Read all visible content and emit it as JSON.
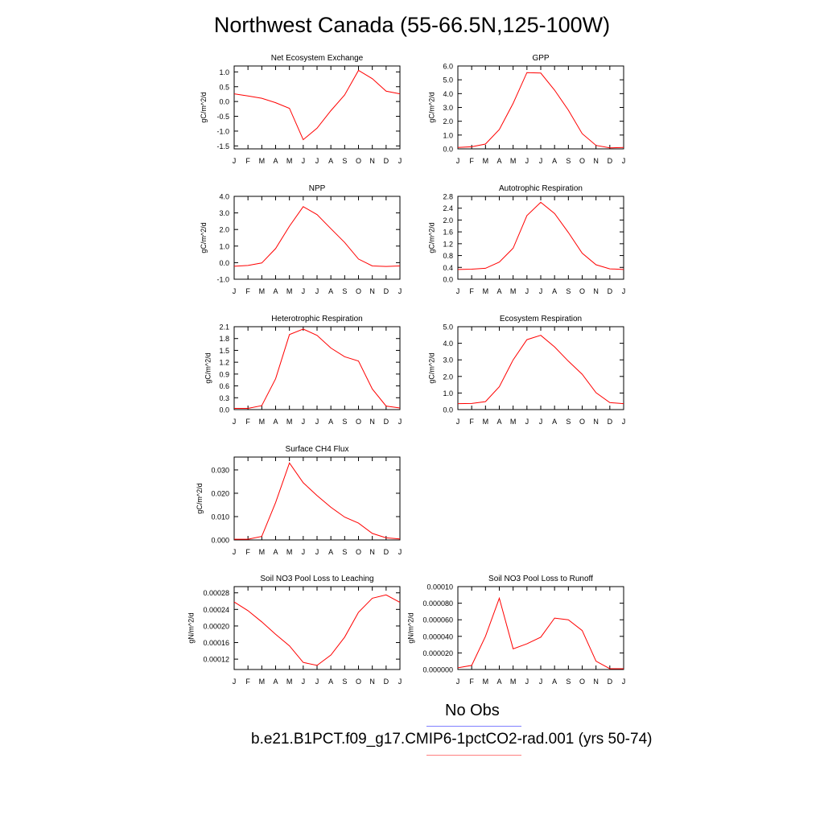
{
  "title": "Northwest Canada (55-66.5N,125-100W)",
  "legend": {
    "obs_label": "No Obs",
    "obs_color": "#8080ff",
    "case_label": "b.e21.B1PCT.f09_g17.CMIP6-1pctCO2-rad.001 (yrs 50-74)",
    "case_color": "#ff8080"
  },
  "chart_data": [
    {
      "type": "line",
      "title": "Net Ecosystem Exchange",
      "ylabel": "gC/m^2/d",
      "categories": [
        "J",
        "F",
        "M",
        "A",
        "M",
        "J",
        "J",
        "A",
        "S",
        "O",
        "N",
        "D",
        "J"
      ],
      "ylim": [
        -1.6,
        1.2
      ],
      "yticks": [
        -1.5,
        -1.0,
        -0.5,
        0.0,
        0.5,
        1.0
      ],
      "ytick_labels": [
        "-1.5",
        "-1.0",
        "-0.5",
        "0.0",
        "0.5",
        "1.0"
      ],
      "series": [
        {
          "values": [
            0.26,
            0.19,
            0.11,
            -0.04,
            -0.23,
            -1.29,
            -0.9,
            -0.31,
            0.22,
            1.05,
            0.77,
            0.35,
            0.26
          ],
          "color": "#ff0000"
        }
      ]
    },
    {
      "type": "line",
      "title": "GPP",
      "ylabel": "gC/m^2/d",
      "categories": [
        "J",
        "F",
        "M",
        "A",
        "M",
        "J",
        "J",
        "A",
        "S",
        "O",
        "N",
        "D",
        "J"
      ],
      "ylim": [
        0,
        6.0
      ],
      "yticks": [
        0,
        1,
        2,
        3,
        4,
        5,
        6
      ],
      "ytick_labels": [
        "0.0",
        "1.0",
        "2.0",
        "3.0",
        "4.0",
        "5.0",
        "6.0"
      ],
      "series": [
        {
          "values": [
            0.1,
            0.15,
            0.35,
            1.4,
            3.3,
            5.52,
            5.49,
            4.25,
            2.8,
            1.1,
            0.25,
            0.07,
            0.1
          ],
          "color": "#ff0000"
        }
      ]
    },
    {
      "type": "line",
      "title": "NPP",
      "ylabel": "gC/m^2/d",
      "categories": [
        "J",
        "F",
        "M",
        "A",
        "M",
        "J",
        "J",
        "A",
        "S",
        "O",
        "N",
        "D",
        "J"
      ],
      "ylim": [
        -1.0,
        4.0
      ],
      "yticks": [
        -1,
        0,
        1,
        2,
        3,
        4
      ],
      "ytick_labels": [
        "-1.0",
        "0.0",
        "1.0",
        "2.0",
        "3.0",
        "4.0"
      ],
      "series": [
        {
          "values": [
            -0.22,
            -0.17,
            -0.02,
            0.85,
            2.2,
            3.38,
            2.9,
            2.05,
            1.22,
            0.22,
            -0.2,
            -0.23,
            -0.2
          ],
          "color": "#ff0000"
        }
      ]
    },
    {
      "type": "line",
      "title": "Autotrophic Respiration",
      "ylabel": "gC/m^2/d",
      "categories": [
        "J",
        "F",
        "M",
        "A",
        "M",
        "J",
        "J",
        "A",
        "S",
        "O",
        "N",
        "D",
        "J"
      ],
      "ylim": [
        0,
        2.8
      ],
      "yticks": [
        0,
        0.4,
        0.8,
        1.2,
        1.6,
        2.0,
        2.4,
        2.8
      ],
      "ytick_labels": [
        "0.0",
        "0.4",
        "0.8",
        "1.2",
        "1.6",
        "2.0",
        "2.4",
        "2.8"
      ],
      "series": [
        {
          "values": [
            0.33,
            0.34,
            0.37,
            0.58,
            1.05,
            2.15,
            2.6,
            2.22,
            1.58,
            0.88,
            0.49,
            0.35,
            0.33
          ],
          "color": "#ff0000"
        }
      ]
    },
    {
      "type": "line",
      "title": "Heterotrophic Respiration",
      "ylabel": "gC/m^2/d",
      "categories": [
        "J",
        "F",
        "M",
        "A",
        "M",
        "J",
        "J",
        "A",
        "S",
        "O",
        "N",
        "D",
        "J"
      ],
      "ylim": [
        0,
        2.1
      ],
      "yticks": [
        0,
        0.3,
        0.6,
        0.9,
        1.2,
        1.5,
        1.8,
        2.1
      ],
      "ytick_labels": [
        "0.0",
        "0.3",
        "0.6",
        "0.9",
        "1.2",
        "1.5",
        "1.8",
        "2.1"
      ],
      "series": [
        {
          "values": [
            0.03,
            0.03,
            0.1,
            0.78,
            1.9,
            2.04,
            1.88,
            1.56,
            1.34,
            1.23,
            0.52,
            0.09,
            0.04
          ],
          "color": "#ff0000"
        }
      ]
    },
    {
      "type": "line",
      "title": "Ecosystem Respiration",
      "ylabel": "gC/m^2/d",
      "categories": [
        "J",
        "F",
        "M",
        "A",
        "M",
        "J",
        "J",
        "A",
        "S",
        "O",
        "N",
        "D",
        "J"
      ],
      "ylim": [
        0,
        5.0
      ],
      "yticks": [
        0,
        1,
        2,
        3,
        4,
        5
      ],
      "ytick_labels": [
        "0.0",
        "1.0",
        "2.0",
        "3.0",
        "4.0",
        "5.0"
      ],
      "series": [
        {
          "values": [
            0.36,
            0.37,
            0.48,
            1.38,
            3.0,
            4.22,
            4.48,
            3.78,
            2.92,
            2.13,
            1.02,
            0.42,
            0.36
          ],
          "color": "#ff0000"
        }
      ]
    },
    {
      "type": "line",
      "title": "Surface CH4 Flux",
      "ylabel": "gC/m^2/d",
      "categories": [
        "J",
        "F",
        "M",
        "A",
        "M",
        "J",
        "J",
        "A",
        "S",
        "O",
        "N",
        "D",
        "J"
      ],
      "ylim": [
        0,
        0.0355
      ],
      "yticks": [
        0,
        0.01,
        0.02,
        0.03
      ],
      "ytick_labels": [
        "0.000",
        "0.010",
        "0.020",
        "0.030"
      ],
      "series": [
        {
          "values": [
            0.0003,
            0.0003,
            0.0015,
            0.016,
            0.033,
            0.0245,
            0.019,
            0.014,
            0.0098,
            0.0072,
            0.0028,
            0.0009,
            0.0004
          ],
          "color": "#ff0000"
        }
      ]
    },
    {
      "type": "line",
      "title": "Soil NO3 Pool Loss to Leaching",
      "ylabel": "gN/m^2/d",
      "categories": [
        "J",
        "F",
        "M",
        "A",
        "M",
        "J",
        "J",
        "A",
        "S",
        "O",
        "N",
        "D",
        "J"
      ],
      "ylim": [
        9.5e-05,
        0.000295
      ],
      "yticks": [
        0.00012,
        0.00016,
        0.0002,
        0.00024,
        0.00028
      ],
      "ytick_labels": [
        "0.00012",
        "0.00016",
        "0.00020",
        "0.00024",
        "0.00028"
      ],
      "series": [
        {
          "values": [
            0.000258,
            0.000237,
            0.00021,
            0.00018,
            0.000152,
            0.000112,
            0.000105,
            0.00013,
            0.000173,
            0.000233,
            0.000267,
            0.000275,
            0.000257
          ],
          "color": "#ff0000"
        }
      ]
    },
    {
      "type": "line",
      "title": "Soil NO3 Pool Loss to Runoff",
      "ylabel": "gN/m^2/d",
      "categories": [
        "J",
        "F",
        "M",
        "A",
        "M",
        "J",
        "J",
        "A",
        "S",
        "O",
        "N",
        "D",
        "J"
      ],
      "ylim": [
        0,
        0.0001
      ],
      "yticks": [
        0,
        2e-05,
        4e-05,
        6e-05,
        8e-05,
        0.0001
      ],
      "ytick_labels": [
        "0.000000",
        "0.000020",
        "0.000040",
        "0.000060",
        "0.000080",
        "0.00010"
      ],
      "series": [
        {
          "values": [
            2e-06,
            5e-06,
            4e-05,
            8.6e-05,
            2.5e-05,
            3.1e-05,
            3.9e-05,
            6.2e-05,
            6e-05,
            4.7e-05,
            1e-05,
            1e-06,
            1e-06
          ],
          "color": "#ff0000"
        }
      ]
    }
  ]
}
